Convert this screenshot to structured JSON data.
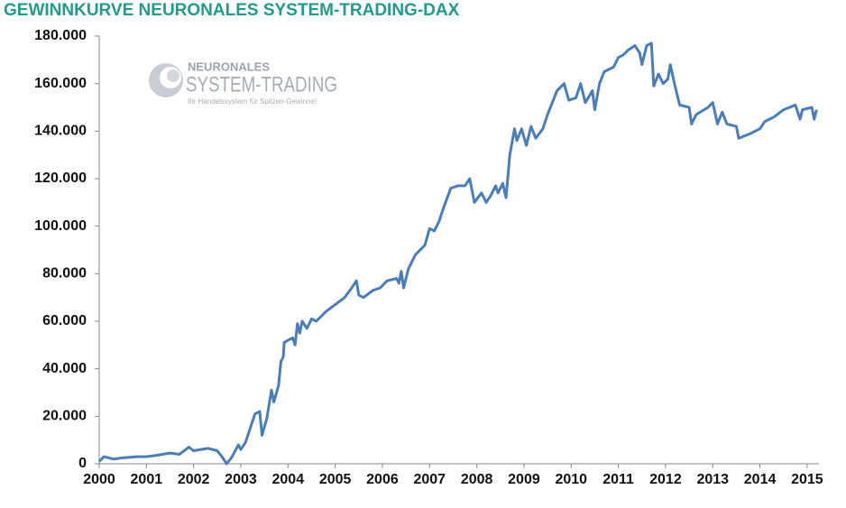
{
  "chart_data": {
    "type": "line",
    "title": "GEWINNKURVE NEURONALES SYSTEM-TRADING-DAX",
    "logo": {
      "name": "NEURONALES",
      "brand": "SYSTEM-TRADING",
      "slogan": "Ihr Handelssystem für Spitzen-Gewinne!"
    },
    "x": [
      2000.0,
      2000.1,
      2000.2,
      2000.3,
      2000.5,
      2000.8,
      2001.0,
      2001.2,
      2001.5,
      2001.7,
      2001.8,
      2001.9,
      2002.0,
      2002.3,
      2002.5,
      2002.6,
      2002.7,
      2002.8,
      2002.95,
      2003.0,
      2003.1,
      2003.2,
      2003.3,
      2003.4,
      2003.45,
      2003.55,
      2003.65,
      2003.7,
      2003.8,
      2003.85,
      2003.9,
      2003.92,
      2004.0,
      2004.1,
      2004.15,
      2004.2,
      2004.25,
      2004.3,
      2004.4,
      2004.5,
      2004.6,
      2004.8,
      2005.0,
      2005.2,
      2005.35,
      2005.45,
      2005.5,
      2005.6,
      2005.8,
      2005.95,
      2006.1,
      2006.3,
      2006.35,
      2006.4,
      2006.45,
      2006.55,
      2006.7,
      2006.9,
      2007.0,
      2007.1,
      2007.2,
      2007.3,
      2007.45,
      2007.6,
      2007.75,
      2007.85,
      2007.95,
      2008.1,
      2008.2,
      2008.3,
      2008.4,
      2008.45,
      2008.55,
      2008.62,
      2008.7,
      2008.8,
      2008.85,
      2008.95,
      2009.05,
      2009.15,
      2009.25,
      2009.4,
      2009.5,
      2009.7,
      2009.85,
      2009.95,
      2010.1,
      2010.2,
      2010.3,
      2010.45,
      2010.5,
      2010.6,
      2010.7,
      2010.9,
      2011.0,
      2011.1,
      2011.2,
      2011.35,
      2011.45,
      2011.5,
      2011.6,
      2011.7,
      2011.75,
      2011.85,
      2011.95,
      2012.05,
      2012.1,
      2012.2,
      2012.3,
      2012.5,
      2012.55,
      2012.65,
      2012.9,
      2013.0,
      2013.1,
      2013.2,
      2013.3,
      2013.5,
      2013.55,
      2013.8,
      2014.0,
      2014.1,
      2014.3,
      2014.5,
      2014.75,
      2014.85,
      2014.9,
      2015.1,
      2015.15,
      2015.2
    ],
    "series": [
      {
        "color": "#4a7ebb",
        "values": [
          1000,
          3000,
          2500,
          2000,
          2500,
          3000,
          3000,
          3500,
          4500,
          4000,
          5500,
          7000,
          5500,
          6500,
          5500,
          3000,
          0,
          2500,
          8000,
          6000,
          9000,
          15000,
          21000,
          22000,
          12000,
          19000,
          31000,
          26000,
          33000,
          43000,
          45000,
          51000,
          52000,
          53000,
          50000,
          59000,
          55000,
          60000,
          57000,
          61000,
          60000,
          64000,
          67000,
          70000,
          74000,
          77000,
          71000,
          70000,
          73000,
          74000,
          77000,
          78000,
          76000,
          81000,
          74000,
          82000,
          88000,
          92000,
          99000,
          98000,
          102000,
          108000,
          116000,
          117000,
          117000,
          120000,
          110000,
          114000,
          110000,
          113000,
          117000,
          114000,
          118000,
          112000,
          130000,
          141000,
          136000,
          141000,
          134000,
          142000,
          137000,
          141000,
          147000,
          157000,
          160000,
          153000,
          154000,
          160000,
          152000,
          157000,
          149000,
          160000,
          165000,
          167000,
          171000,
          172000,
          174000,
          176000,
          173000,
          168000,
          176000,
          177000,
          159000,
          164000,
          160000,
          162000,
          168000,
          159000,
          151000,
          150000,
          143000,
          147000,
          150000,
          152000,
          143000,
          148000,
          143000,
          142000,
          137000,
          139000,
          141000,
          144000,
          146000,
          149000,
          151000,
          145000,
          149000,
          150000,
          145000,
          149000
        ]
      }
    ],
    "xlim": [
      2000,
      2015.25
    ],
    "xticks": [
      2000,
      2001,
      2002,
      2003,
      2004,
      2005,
      2006,
      2007,
      2008,
      2009,
      2010,
      2011,
      2012,
      2013,
      2014,
      2015
    ],
    "ylim": [
      0,
      180000
    ],
    "yticks": [
      0,
      {
        "value": 20000,
        "label": "20.000"
      },
      {
        "value": 40000,
        "label": "40.000"
      },
      {
        "value": 60000,
        "label": "60.000"
      },
      {
        "value": 80000,
        "label": "80.000"
      },
      {
        "value": 100000,
        "label": "100.000"
      },
      {
        "value": 120000,
        "label": "120.000"
      },
      {
        "value": 140000,
        "label": "140.000"
      },
      {
        "value": 160000,
        "label": "160.000"
      },
      {
        "value": 180000,
        "label": "180.000"
      }
    ],
    "grid": false
  }
}
